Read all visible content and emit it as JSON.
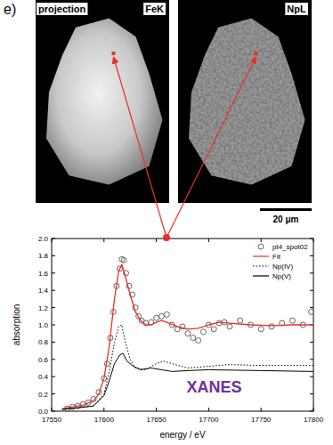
{
  "panel_label": "e)",
  "images": [
    {
      "labels": [
        "projection",
        "FeK"
      ]
    },
    {
      "labels": [
        "NpL"
      ]
    }
  ],
  "scale_bar": "20 μm",
  "chart_data": {
    "type": "line",
    "x_label": "energy / eV",
    "y_label": "absorption",
    "annotations": [
      {
        "text": "XANES",
        "color": "#7030a0"
      }
    ],
    "xlim": [
      17550,
      17800
    ],
    "xticks": [
      17550,
      17600,
      17650,
      17700,
      17750,
      17800
    ],
    "ylim": [
      0,
      2
    ],
    "yticks": [
      {
        "value": 0,
        "label": "0.0"
      },
      {
        "value": 0.2,
        "label": "0.2"
      },
      {
        "value": 0.4,
        "label": "0.4"
      },
      {
        "value": 0.6,
        "label": "0.6"
      },
      {
        "value": 0.8,
        "label": "0.8"
      },
      {
        "value": 1,
        "label": "1.0"
      },
      {
        "value": 1.2,
        "label": "1.2"
      },
      {
        "value": 1.4,
        "label": "1.4"
      },
      {
        "value": 1.6,
        "label": "1.6"
      },
      {
        "value": 1.8,
        "label": "1.8"
      },
      {
        "value": 2,
        "label": "2.0"
      }
    ],
    "grid": false,
    "legend": "top-right",
    "series": [
      {
        "name": "pt4_spot02",
        "type": "scatter",
        "marker": "circle",
        "color": "#555555",
        "x": [
          17565,
          17570,
          17575,
          17580,
          17585,
          17590,
          17595,
          17600,
          17603,
          17606,
          17609,
          17612,
          17615,
          17617,
          17619,
          17621,
          17624,
          17627,
          17630,
          17633,
          17636,
          17640,
          17645,
          17650,
          17655,
          17660,
          17665,
          17670,
          17675,
          17680,
          17685,
          17690,
          17695,
          17700,
          17705,
          17710,
          17715,
          17720,
          17730,
          17740,
          17750,
          17760,
          17770,
          17780,
          17790,
          17798
        ],
        "values": [
          0.03,
          0.05,
          0.06,
          0.08,
          0.1,
          0.14,
          0.22,
          0.38,
          0.55,
          0.85,
          1.15,
          1.45,
          1.65,
          1.76,
          1.75,
          1.6,
          1.45,
          1.35,
          1.2,
          1.1,
          1.05,
          1.02,
          1.03,
          1.08,
          1.1,
          1.12,
          1.0,
          0.95,
          0.98,
          0.9,
          0.85,
          0.82,
          0.92,
          1.0,
          0.95,
          1.02,
          1.03,
          0.98,
          1.05,
          1.0,
          0.95,
          0.98,
          1.02,
          1.05,
          1.0,
          1.15
        ]
      },
      {
        "name": "Fit",
        "type": "line",
        "line_style": "solid",
        "color": "#e8302a",
        "x": [
          17560,
          17580,
          17590,
          17595,
          17600,
          17605,
          17610,
          17614,
          17617,
          17620,
          17625,
          17630,
          17635,
          17640,
          17645,
          17650,
          17655,
          17660,
          17670,
          17680,
          17690,
          17700,
          17710,
          17720,
          17740,
          17760,
          17780,
          17800
        ],
        "values": [
          0.03,
          0.07,
          0.12,
          0.2,
          0.38,
          0.75,
          1.3,
          1.62,
          1.7,
          1.58,
          1.35,
          1.15,
          1.05,
          1.0,
          1.0,
          1.03,
          1.05,
          1.03,
          0.98,
          0.95,
          0.96,
          1.0,
          1.03,
          1.02,
          1.0,
          0.99,
          1.0,
          1.0
        ]
      },
      {
        "name": "Np(IV)",
        "type": "line",
        "line_style": "dotted",
        "color": "#000000",
        "x": [
          17560,
          17590,
          17600,
          17605,
          17610,
          17614,
          17617,
          17620,
          17625,
          17630,
          17640,
          17650,
          17657,
          17665,
          17680,
          17700,
          17720,
          17750,
          17800
        ],
        "values": [
          0.02,
          0.06,
          0.2,
          0.45,
          0.8,
          0.98,
          1.0,
          0.82,
          0.6,
          0.5,
          0.48,
          0.55,
          0.58,
          0.55,
          0.5,
          0.52,
          0.54,
          0.53,
          0.53
        ]
      },
      {
        "name": "Np(V)",
        "type": "line",
        "line_style": "solid",
        "color": "#000000",
        "x": [
          17560,
          17590,
          17600,
          17605,
          17610,
          17615,
          17618,
          17622,
          17628,
          17635,
          17645,
          17655,
          17665,
          17680,
          17700,
          17750,
          17800
        ],
        "values": [
          0.02,
          0.06,
          0.18,
          0.35,
          0.55,
          0.65,
          0.67,
          0.58,
          0.52,
          0.48,
          0.5,
          0.48,
          0.46,
          0.47,
          0.48,
          0.47,
          0.46
        ]
      }
    ]
  }
}
